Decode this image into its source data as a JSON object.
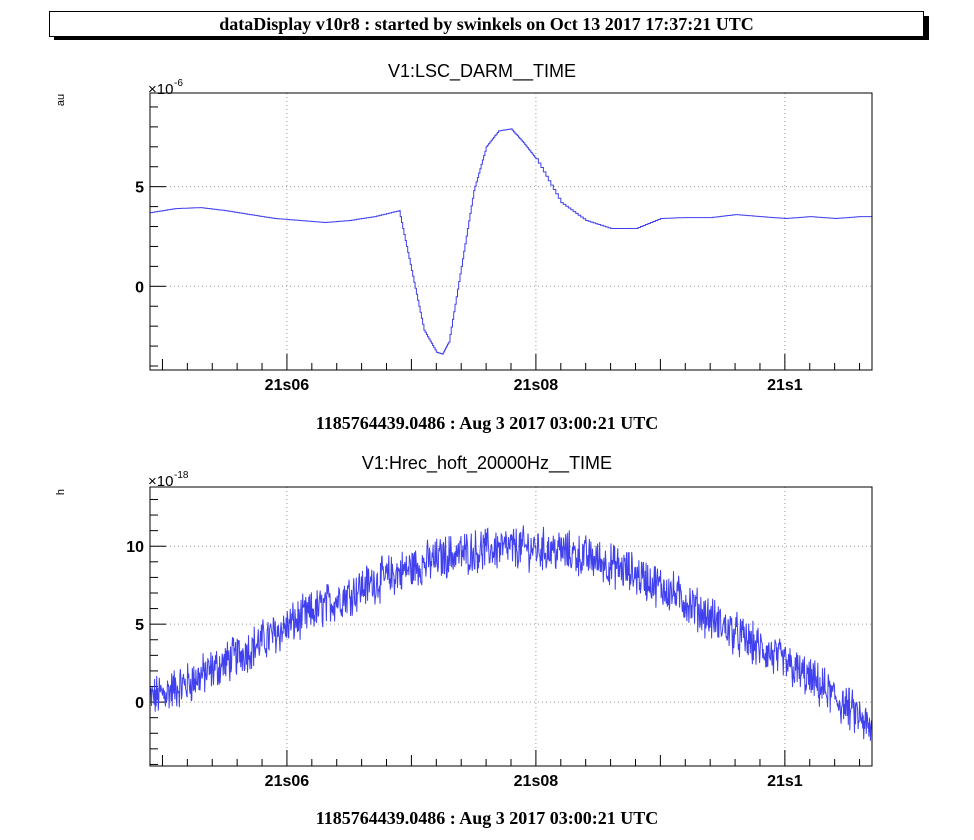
{
  "header": {
    "title": "dataDisplay v10r8 : started by swinkels on Oct 13 2017 17:37:21 UTC"
  },
  "colors": {
    "trace": "#4040ee",
    "grid": "#999999",
    "axis": "#000000"
  },
  "chart_data": [
    {
      "type": "line",
      "title": "V1:LSC_DARM__TIME",
      "ylabel": "au",
      "y_multiplier": "×10",
      "y_exponent": "-6",
      "xlabel": "1185764439.0486 : Aug  3 2017 03:00:21 UTC",
      "xlim": [
        4.9,
        10.7
      ],
      "ylim": [
        -4.2,
        9.7
      ],
      "x_ticks": [
        {
          "value": 6,
          "label": "21s06"
        },
        {
          "value": 8,
          "label": "21s08"
        },
        {
          "value": 10,
          "label": "21s1"
        }
      ],
      "y_ticks": [
        {
          "value": 0,
          "label": "0"
        },
        {
          "value": 5,
          "label": "5"
        }
      ],
      "grid": true,
      "series": [
        {
          "x": [
            4.9,
            5.1,
            5.3,
            5.5,
            5.7,
            5.9,
            6.1,
            6.3,
            6.5,
            6.7,
            6.9,
            7.0,
            7.1,
            7.2,
            7.25,
            7.3,
            7.4,
            7.5,
            7.6,
            7.7,
            7.8,
            7.9,
            8.0,
            8.2,
            8.4,
            8.6,
            8.8,
            9.0,
            9.2,
            9.4,
            9.6,
            9.8,
            10.0,
            10.2,
            10.4,
            10.6,
            10.7
          ],
          "y": [
            3.7,
            3.9,
            3.95,
            3.8,
            3.6,
            3.4,
            3.3,
            3.2,
            3.3,
            3.5,
            3.8,
            0.8,
            -2.2,
            -3.3,
            -3.4,
            -2.8,
            1.0,
            4.8,
            7.0,
            7.8,
            7.9,
            7.2,
            6.4,
            4.2,
            3.3,
            2.9,
            2.9,
            3.4,
            3.45,
            3.45,
            3.6,
            3.5,
            3.4,
            3.5,
            3.4,
            3.5,
            3.5
          ]
        }
      ]
    },
    {
      "type": "line",
      "title": "V1:Hrec_hoft_20000Hz__TIME",
      "ylabel": "h",
      "y_multiplier": "×10",
      "y_exponent": "-18",
      "xlabel": "1185764439.0486 : Aug  3 2017 03:00:21 UTC",
      "xlim": [
        4.9,
        10.7
      ],
      "ylim": [
        -4.1,
        13.8
      ],
      "x_ticks": [
        {
          "value": 6,
          "label": "21s06"
        },
        {
          "value": 8,
          "label": "21s08"
        },
        {
          "value": 10,
          "label": "21s1"
        }
      ],
      "y_ticks": [
        {
          "value": 0,
          "label": "0"
        },
        {
          "value": 5,
          "label": "5"
        },
        {
          "value": 10,
          "label": "10"
        }
      ],
      "grid": true,
      "series": [
        {
          "x": [
            4.9,
            5.2,
            5.5,
            5.8,
            6.1,
            6.4,
            6.7,
            7.0,
            7.3,
            7.6,
            7.9,
            8.2,
            8.5,
            8.8,
            9.1,
            9.4,
            9.7,
            10.0,
            10.3,
            10.6,
            10.7
          ],
          "y": [
            0.2,
            1.2,
            2.5,
            3.9,
            5.3,
            6.6,
            7.7,
            8.6,
            9.4,
            9.8,
            9.9,
            9.7,
            9.1,
            8.2,
            7.0,
            5.4,
            3.9,
            2.5,
            0.9,
            -1.0,
            -2.0
          ]
        }
      ]
    }
  ]
}
